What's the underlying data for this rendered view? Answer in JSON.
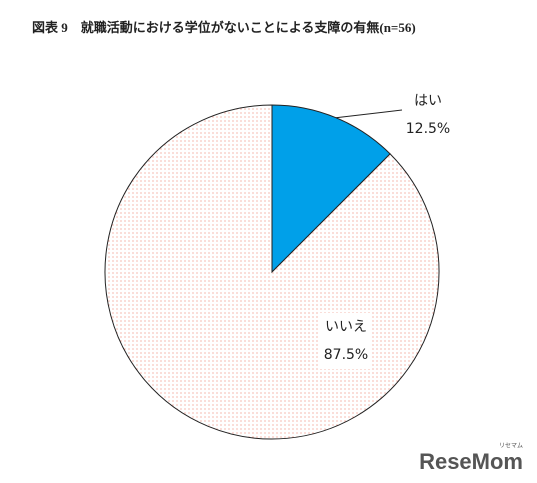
{
  "chart_data": {
    "type": "pie",
    "title": "図表 9　就職活動における学位がないことによる支障の有無(n=56)",
    "categories": [
      "はい",
      "いいえ"
    ],
    "values": [
      12.5,
      87.5
    ],
    "value_labels": [
      "12.5%",
      "87.5%"
    ],
    "colors": [
      "#00a0e9",
      "#f08a7a"
    ],
    "watermark": "ReseMom",
    "watermark_sub": "リセマム"
  }
}
